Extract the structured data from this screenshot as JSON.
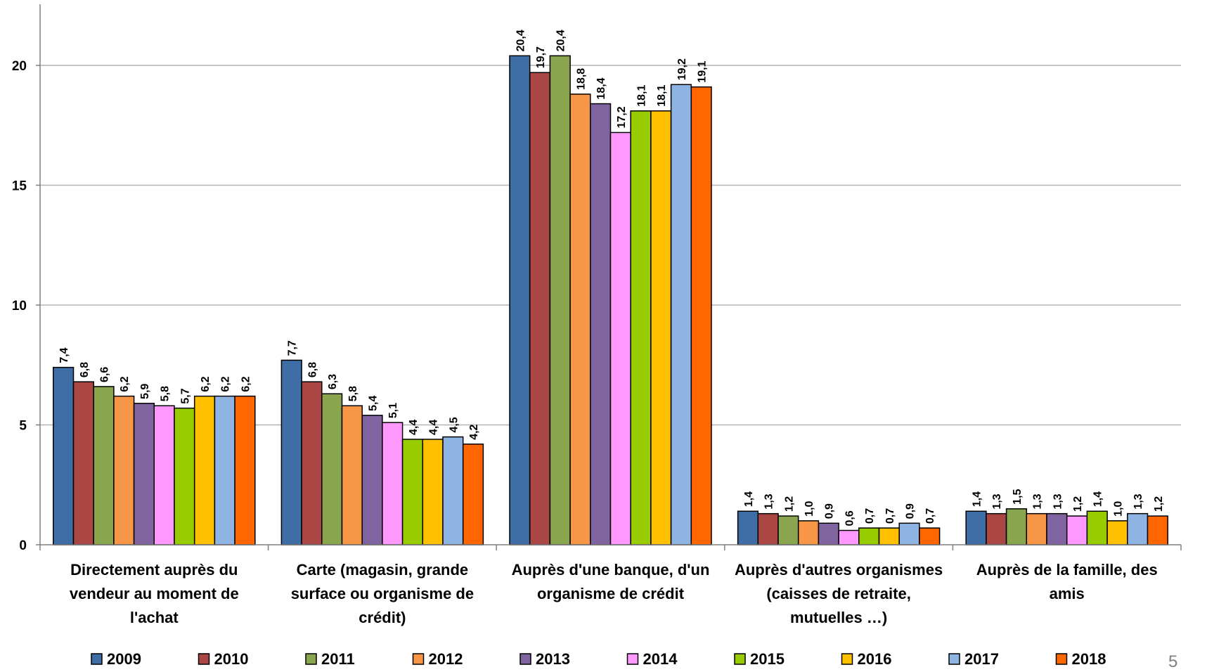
{
  "chart_data": {
    "type": "bar",
    "title": "",
    "xlabel": "",
    "ylabel": "",
    "ylim": [
      0,
      22
    ],
    "yticks": [
      0,
      5,
      10,
      15,
      20
    ],
    "grid": true,
    "legend_position": "bottom",
    "categories": [
      [
        "Directement auprès du",
        "vendeur au moment de",
        "l'achat"
      ],
      [
        "Carte (magasin, grande",
        "surface ou organisme de",
        "crédit)"
      ],
      [
        "Auprès d'une banque, d'un",
        "organisme de crédit"
      ],
      [
        "Auprès d'autres organismes",
        "(caisses de retraite,",
        "mutuelles …)"
      ],
      [
        "Auprès de la famille, des",
        "amis"
      ]
    ],
    "series": [
      {
        "name": "2009",
        "color": "#3F6DA6",
        "values": [
          7.4,
          7.7,
          20.4,
          1.4,
          1.4
        ],
        "labels": [
          "7,4",
          "7,7",
          "20,4",
          "1,4",
          "1,4"
        ]
      },
      {
        "name": "2010",
        "color": "#AA4643",
        "values": [
          6.8,
          6.8,
          19.7,
          1.3,
          1.3
        ],
        "labels": [
          "6,8",
          "6,8",
          "19,7",
          "1,3",
          "1,3"
        ]
      },
      {
        "name": "2011",
        "color": "#89A54E",
        "values": [
          6.6,
          6.3,
          20.4,
          1.2,
          1.5
        ],
        "labels": [
          "6,6",
          "6,3",
          "20,4",
          "1,2",
          "1,5"
        ]
      },
      {
        "name": "2012",
        "color": "#F79646",
        "values": [
          6.2,
          5.8,
          18.8,
          1.0,
          1.3
        ],
        "labels": [
          "6,2",
          "5,8",
          "18,8",
          "1,0",
          "1,3"
        ]
      },
      {
        "name": "2013",
        "color": "#80649F",
        "values": [
          5.9,
          5.4,
          18.4,
          0.9,
          1.3
        ],
        "labels": [
          "5,9",
          "5,4",
          "18,4",
          "0,9",
          "1,3"
        ]
      },
      {
        "name": "2014",
        "color": "#FF99FF",
        "values": [
          5.8,
          5.1,
          17.2,
          0.6,
          1.2
        ],
        "labels": [
          "5,8",
          "5,1",
          "17,2",
          "0,6",
          "1,2"
        ]
      },
      {
        "name": "2015",
        "color": "#99CC00",
        "values": [
          5.7,
          4.4,
          18.1,
          0.7,
          1.4
        ],
        "labels": [
          "5,7",
          "4,4",
          "18,1",
          "0,7",
          "1,4"
        ]
      },
      {
        "name": "2016",
        "color": "#FFC000",
        "values": [
          6.2,
          4.4,
          18.1,
          0.7,
          1.0
        ],
        "labels": [
          "6,2",
          "4,4",
          "18,1",
          "0,7",
          "1,0"
        ]
      },
      {
        "name": "2017",
        "color": "#8EB4E3",
        "values": [
          6.2,
          4.5,
          19.2,
          0.9,
          1.3
        ],
        "labels": [
          "6,2",
          "4,5",
          "19,2",
          "0,9",
          "1,3"
        ]
      },
      {
        "name": "2018",
        "color": "#FF6600",
        "values": [
          6.2,
          4.2,
          19.1,
          0.7,
          1.2
        ],
        "labels": [
          "6,2",
          "4,2",
          "19,1",
          "0,7",
          "1,2"
        ]
      }
    ]
  },
  "page_number": "5"
}
